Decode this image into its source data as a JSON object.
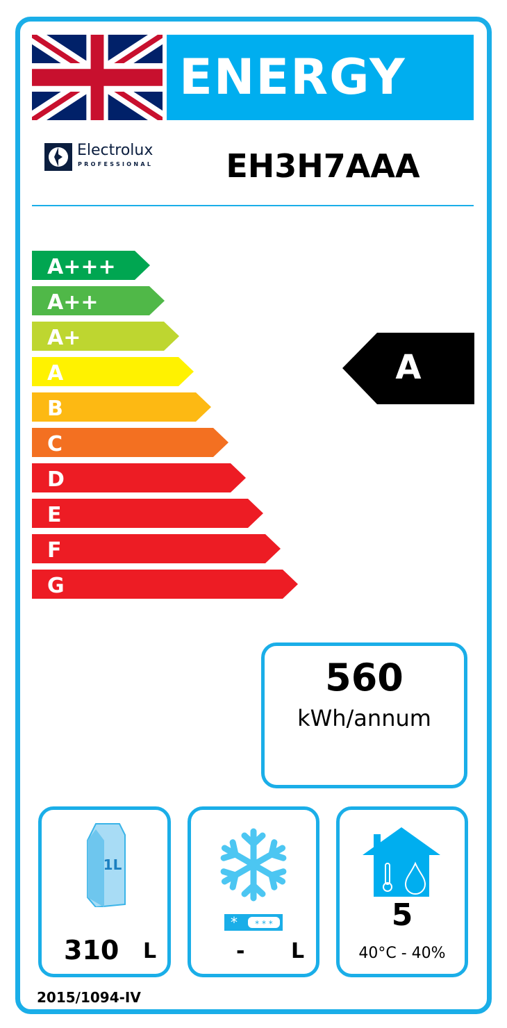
{
  "header": {
    "title": "ENERGY",
    "flag_icon": "union-jack-flag-icon"
  },
  "brand": {
    "name": "Electrolux",
    "sub": "PROFESSIONAL",
    "logo_icon": "electrolux-logo-icon"
  },
  "model": "EH3H7AAA",
  "scale": [
    {
      "label": "A+++",
      "color": "#00a651"
    },
    {
      "label": "A++",
      "color": "#50b848"
    },
    {
      "label": "A+",
      "color": "#bed630"
    },
    {
      "label": "A",
      "color": "#fff200"
    },
    {
      "label": "B",
      "color": "#fdb913"
    },
    {
      "label": "C",
      "color": "#f37021"
    },
    {
      "label": "D",
      "color": "#ed1c24"
    },
    {
      "label": "E",
      "color": "#ed1c24"
    },
    {
      "label": "F",
      "color": "#ed1c24"
    },
    {
      "label": "G",
      "color": "#ed1c24"
    }
  ],
  "rating": "A",
  "consumption": {
    "value": "560",
    "unit": "kWh/annum"
  },
  "storage": {
    "value": "310",
    "unit": "L",
    "icon": "milk-carton-icon",
    "icon_text": "1L"
  },
  "frozen": {
    "value": "-",
    "unit": "L",
    "icon": "snowflake-icon"
  },
  "climate": {
    "class": "5",
    "conditions": "40°C - 40%",
    "icon": "house-climate-icon"
  },
  "regulation": "2015/1094-IV",
  "colors": {
    "accent": "#00aeef",
    "border": "#1aaee8"
  }
}
